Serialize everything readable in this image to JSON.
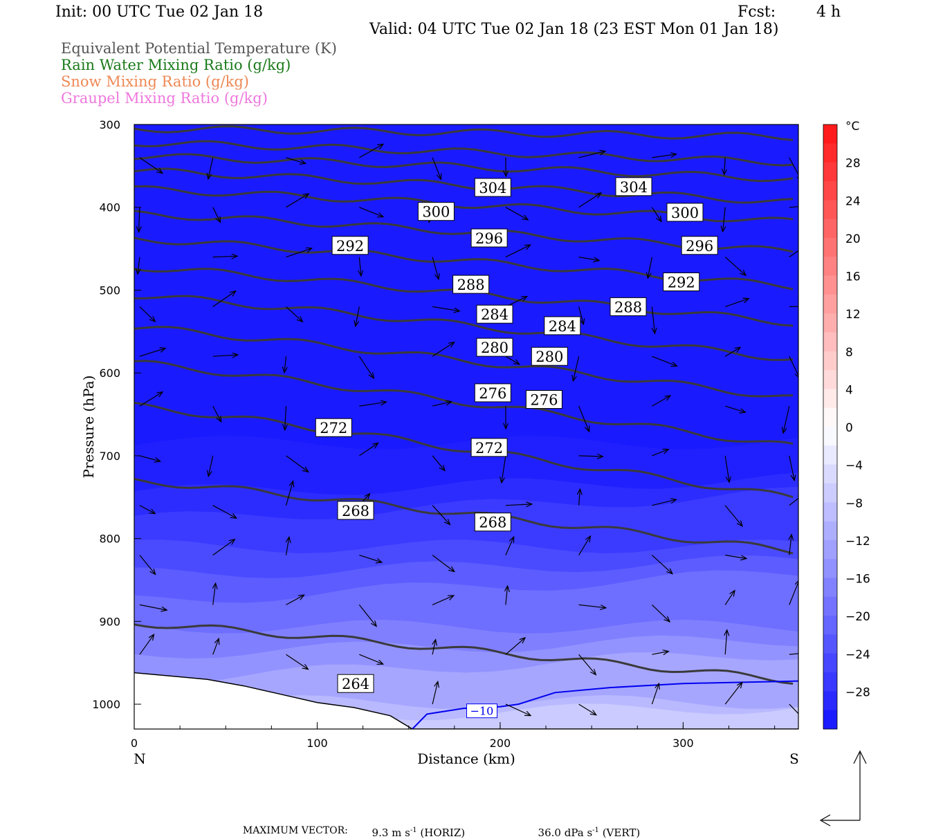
{
  "header": {
    "init": "Init: 00 UTC Tue 02 Jan 18",
    "fcst_label": "Fcst:",
    "fcst_value": "4 h",
    "valid": "Valid: 04 UTC Tue 02 Jan 18 (23 EST Mon 01 Jan 18)"
  },
  "legend": {
    "items": [
      {
        "text": "Equivalent Potential Temperature (K)",
        "color": "#555555"
      },
      {
        "text": "Rain Water Mixing Ratio (g/kg)",
        "color": "#1a7a1a"
      },
      {
        "text": "Snow Mixing Ratio (g/kg)",
        "color": "#ee8855"
      },
      {
        "text": "Graupel Mixing Ratio (g/kg)",
        "color": "#ee77dd"
      }
    ]
  },
  "footer": {
    "label": "MAXIMUM VECTOR:",
    "horiz_value": "9.3 m s",
    "horiz_exp": "-1",
    "horiz_tag": "(HORIZ)",
    "vert_value": "36.0 dPa s",
    "vert_exp": "-1",
    "vert_tag": "(VERT)"
  },
  "chart_data": {
    "type": "cross-section",
    "xlabel": "Distance (km)",
    "ylabel": "Pressure (hPa)",
    "xlim": [
      0,
      363
    ],
    "ylim": [
      1030,
      300
    ],
    "x_ticks": [
      0,
      100,
      200,
      300
    ],
    "y_ticks": [
      300,
      400,
      500,
      600,
      700,
      800,
      900,
      1000
    ],
    "left_end_label": "N",
    "right_end_label": "S",
    "colorbar": {
      "unit": "°C",
      "ticks": [
        28,
        24,
        20,
        16,
        12,
        8,
        4,
        0,
        -4,
        -8,
        -12,
        -16,
        -20,
        -24,
        -28
      ],
      "min": -32,
      "max": 32
    },
    "isentrope_labels": [
      {
        "text": "304",
        "x": 196,
        "p": 376
      },
      {
        "text": "304",
        "x": 273,
        "p": 375
      },
      {
        "text": "300",
        "x": 165,
        "p": 405
      },
      {
        "text": "300",
        "x": 301,
        "p": 406
      },
      {
        "text": "296",
        "x": 194,
        "p": 437
      },
      {
        "text": "296",
        "x": 309,
        "p": 446
      },
      {
        "text": "292",
        "x": 118,
        "p": 446
      },
      {
        "text": "292",
        "x": 299,
        "p": 490
      },
      {
        "text": "288",
        "x": 184,
        "p": 493
      },
      {
        "text": "288",
        "x": 270,
        "p": 520
      },
      {
        "text": "284",
        "x": 197,
        "p": 529
      },
      {
        "text": "284",
        "x": 234,
        "p": 543
      },
      {
        "text": "280",
        "x": 197,
        "p": 569
      },
      {
        "text": "280",
        "x": 227,
        "p": 580
      },
      {
        "text": "276",
        "x": 196,
        "p": 624
      },
      {
        "text": "276",
        "x": 224,
        "p": 632
      },
      {
        "text": "272",
        "x": 109,
        "p": 666
      },
      {
        "text": "272",
        "x": 194,
        "p": 690
      },
      {
        "text": "268",
        "x": 121,
        "p": 766
      },
      {
        "text": "268",
        "x": 196,
        "p": 780
      },
      {
        "text": "264",
        "x": 121,
        "p": 975
      }
    ],
    "temperature_labels": [
      {
        "text": "−10",
        "x": 190,
        "p": 1008
      }
    ]
  }
}
